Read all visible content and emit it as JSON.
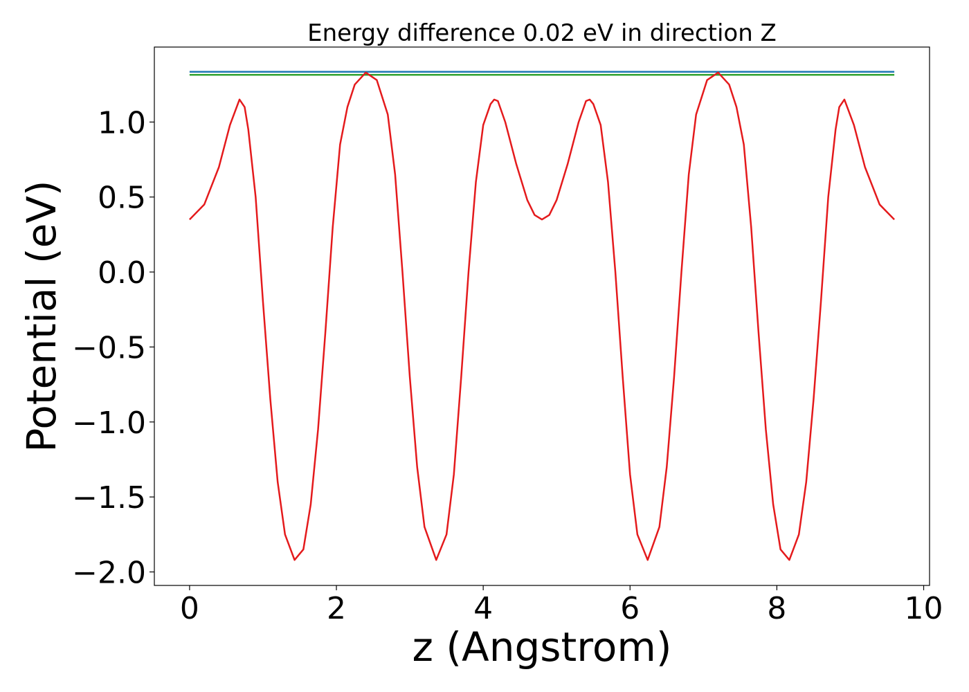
{
  "chart_data": {
    "type": "line",
    "title": "Energy difference 0.02 eV in direction Z",
    "xlabel": "z (Angstrom)",
    "ylabel": "Potential (eV)",
    "xlim": [
      -0.48,
      10.08
    ],
    "ylim": [
      -2.09,
      1.5
    ],
    "xticks": [
      0,
      2,
      4,
      6,
      8,
      10
    ],
    "yticks": [
      {
        "value": -2,
        "label": "−2.0"
      },
      {
        "value": -1.5,
        "label": "−1.5"
      },
      {
        "value": -1,
        "label": "−1.0"
      },
      {
        "value": -0.5,
        "label": "−0.5"
      },
      {
        "value": 0,
        "label": "0.0"
      },
      {
        "value": 0.5,
        "label": "0.5"
      },
      {
        "value": 1,
        "label": "1.0"
      }
    ],
    "grid": false,
    "series": [
      {
        "color": "#1f77b4",
        "x": [
          0,
          9.6
        ],
        "values": [
          1.335,
          1.335
        ]
      },
      {
        "color": "#2ca02c",
        "x": [
          0,
          9.6
        ],
        "values": [
          1.315,
          1.315
        ]
      },
      {
        "color": "#e41a1c",
        "x": [
          0,
          0.2,
          0.4,
          0.55,
          0.68,
          0.75,
          0.8,
          0.9,
          1.0,
          1.1,
          1.2,
          1.3,
          1.43,
          1.55,
          1.65,
          1.75,
          1.85,
          1.95,
          2.05,
          2.15,
          2.25,
          2.4,
          2.55,
          2.7,
          2.8,
          2.9,
          3.0,
          3.1,
          3.2,
          3.36,
          3.5,
          3.6,
          3.7,
          3.8,
          3.9,
          4.0,
          4.1,
          4.15,
          4.2,
          4.3,
          4.45,
          4.6,
          4.7,
          4.8,
          4.9,
          5.0,
          5.15,
          5.3,
          5.4,
          5.45,
          5.5,
          5.6,
          5.7,
          5.8,
          5.9,
          6.0,
          6.1,
          6.24,
          6.4,
          6.5,
          6.6,
          6.7,
          6.8,
          6.9,
          7.05,
          7.2,
          7.35,
          7.45,
          7.55,
          7.65,
          7.75,
          7.85,
          7.95,
          8.05,
          8.17,
          8.3,
          8.4,
          8.5,
          8.6,
          8.7,
          8.8,
          8.85,
          8.92,
          9.05,
          9.2,
          9.4,
          9.6
        ],
        "values": [
          0.35,
          0.45,
          0.7,
          0.98,
          1.15,
          1.1,
          0.95,
          0.5,
          -0.2,
          -0.85,
          -1.4,
          -1.75,
          -1.92,
          -1.85,
          -1.55,
          -1.05,
          -0.4,
          0.3,
          0.85,
          1.1,
          1.25,
          1.33,
          1.28,
          1.05,
          0.65,
          0.0,
          -0.7,
          -1.3,
          -1.7,
          -1.92,
          -1.75,
          -1.35,
          -0.7,
          0.0,
          0.6,
          0.98,
          1.12,
          1.15,
          1.14,
          1.0,
          0.72,
          0.48,
          0.38,
          0.35,
          0.38,
          0.48,
          0.72,
          1.0,
          1.14,
          1.15,
          1.12,
          0.98,
          0.6,
          0.0,
          -0.7,
          -1.35,
          -1.75,
          -1.92,
          -1.7,
          -1.3,
          -0.7,
          0.0,
          0.65,
          1.05,
          1.28,
          1.33,
          1.25,
          1.1,
          0.85,
          0.3,
          -0.4,
          -1.05,
          -1.55,
          -1.85,
          -1.92,
          -1.75,
          -1.4,
          -0.85,
          -0.2,
          0.5,
          0.95,
          1.1,
          1.15,
          0.98,
          0.7,
          0.45,
          0.35
        ]
      }
    ]
  }
}
